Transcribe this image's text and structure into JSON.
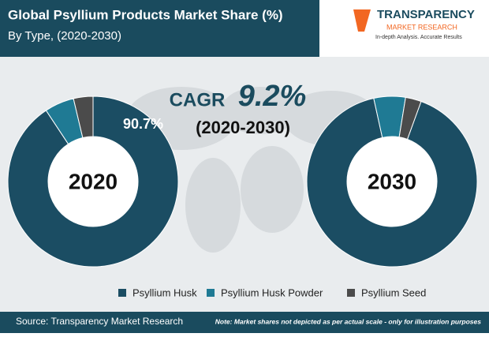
{
  "header": {
    "title": "Global Psyllium Products Market Share (%)",
    "subtitle": "By Type, (2020-2030)"
  },
  "logo": {
    "name": "TRANSPARENCY",
    "line2": "MARKET RESEARCH",
    "tagline": "In-depth Analysis. Accurate Results"
  },
  "cagr": {
    "label": "CAGR",
    "value": "9.2%",
    "period": "(2020-2030)"
  },
  "chart_data": [
    {
      "type": "pie",
      "title": "2020",
      "categories": [
        "Psyllium Husk",
        "Psyllium Husk Powder",
        "Psyllium Seed"
      ],
      "values": [
        90.7,
        5.6,
        3.7
      ],
      "value_labels": [
        "90.7%",
        null,
        null
      ],
      "colors": [
        "#1b4d63",
        "#1f7a94",
        "#4b4b4b"
      ]
    },
    {
      "type": "pie",
      "title": "2030",
      "categories": [
        "Psyllium Husk",
        "Psyllium Husk Powder",
        "Psyllium Seed"
      ],
      "values": [
        91,
        6,
        3
      ],
      "colors": [
        "#1b4d63",
        "#1f7a94",
        "#4b4b4b"
      ]
    }
  ],
  "footer": {
    "source": "Source: Transparency Market Research",
    "note": "Note: Market shares not depicted as per actual scale - only for illustration purposes"
  }
}
